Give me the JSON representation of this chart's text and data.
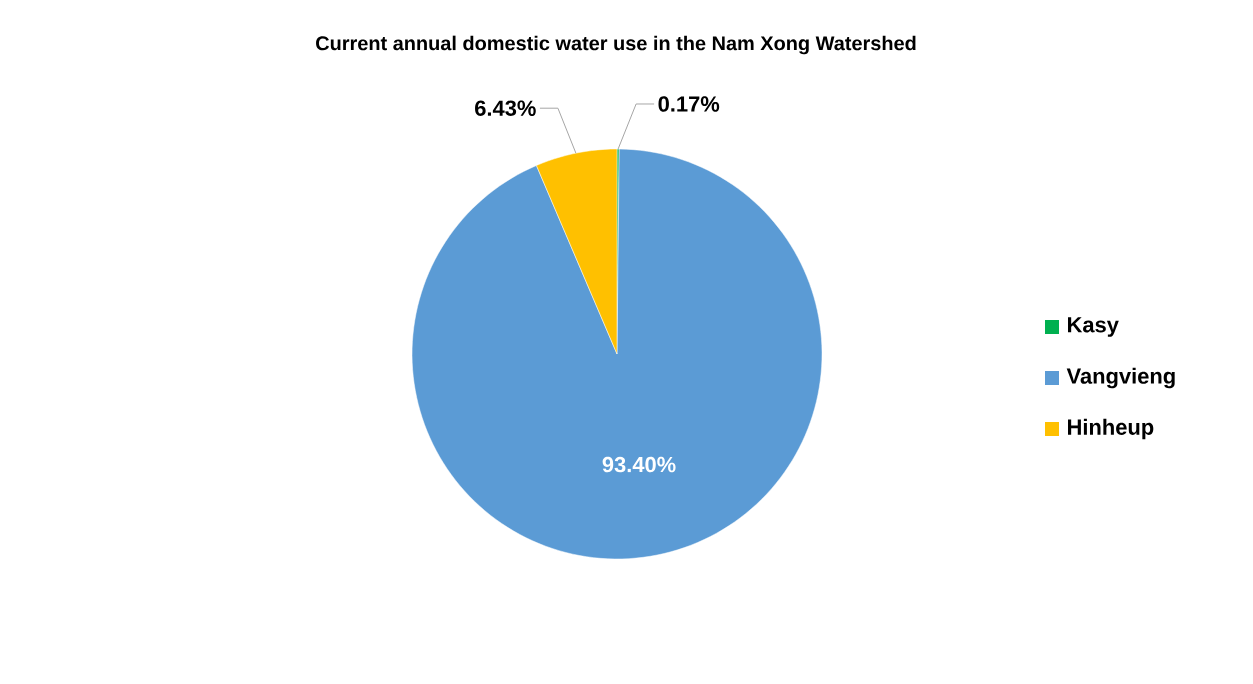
{
  "chart_data": {
    "type": "pie",
    "title": "Current annual domestic water use in the Nam Xong Watershed",
    "categories": [
      "Kasy",
      "Vangvieng",
      "Hinheup"
    ],
    "values": [
      0.17,
      93.4,
      6.43
    ],
    "value_labels": [
      "0.17%",
      "93.40%",
      "6.43%"
    ],
    "colors": [
      "#00b050",
      "#5b9bd5",
      "#ffc000"
    ],
    "legend": "right"
  }
}
